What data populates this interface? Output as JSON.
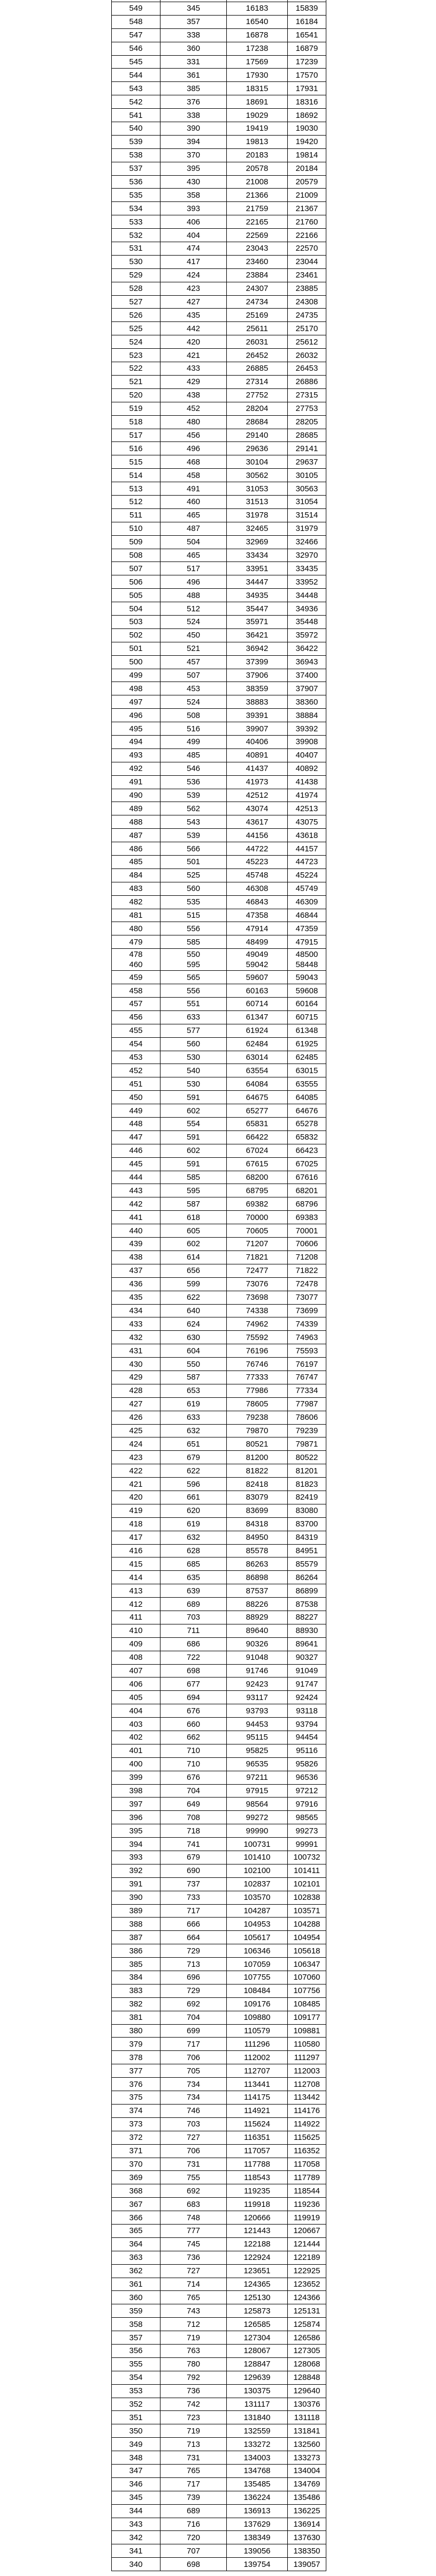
{
  "rows_before": [
    [
      549,
      345,
      16183,
      15839
    ],
    [
      548,
      357,
      16540,
      16184
    ],
    [
      547,
      338,
      16878,
      16541
    ],
    [
      546,
      360,
      17238,
      16879
    ],
    [
      545,
      331,
      17569,
      17239
    ],
    [
      544,
      361,
      17930,
      17570
    ],
    [
      543,
      385,
      18315,
      17931
    ],
    [
      542,
      376,
      18691,
      18316
    ],
    [
      541,
      338,
      19029,
      18692
    ],
    [
      540,
      390,
      19419,
      19030
    ],
    [
      539,
      394,
      19813,
      19420
    ],
    [
      538,
      370,
      20183,
      19814
    ],
    [
      537,
      395,
      20578,
      20184
    ],
    [
      536,
      430,
      21008,
      20579
    ],
    [
      535,
      358,
      21366,
      21009
    ],
    [
      534,
      393,
      21759,
      21367
    ],
    [
      533,
      406,
      22165,
      21760
    ],
    [
      532,
      404,
      22569,
      22166
    ],
    [
      531,
      474,
      23043,
      22570
    ],
    [
      530,
      417,
      23460,
      23044
    ],
    [
      529,
      424,
      23884,
      23461
    ],
    [
      528,
      423,
      24307,
      23885
    ],
    [
      527,
      427,
      24734,
      24308
    ],
    [
      526,
      435,
      25169,
      24735
    ],
    [
      525,
      442,
      25611,
      25170
    ],
    [
      524,
      420,
      26031,
      25612
    ],
    [
      523,
      421,
      26452,
      26032
    ],
    [
      522,
      433,
      26885,
      26453
    ],
    [
      521,
      429,
      27314,
      26886
    ],
    [
      520,
      438,
      27752,
      27315
    ],
    [
      519,
      452,
      28204,
      27753
    ],
    [
      518,
      480,
      28684,
      28205
    ],
    [
      517,
      456,
      29140,
      28685
    ],
    [
      516,
      496,
      29636,
      29141
    ],
    [
      515,
      468,
      30104,
      29637
    ],
    [
      514,
      458,
      30562,
      30105
    ],
    [
      513,
      491,
      31053,
      30563
    ],
    [
      512,
      460,
      31513,
      31054
    ],
    [
      511,
      465,
      31978,
      31514
    ],
    [
      510,
      487,
      32465,
      31979
    ],
    [
      509,
      504,
      32969,
      32466
    ],
    [
      508,
      465,
      33434,
      32970
    ],
    [
      507,
      517,
      33951,
      33435
    ],
    [
      506,
      496,
      34447,
      33952
    ],
    [
      505,
      488,
      34935,
      34448
    ],
    [
      504,
      512,
      35447,
      34936
    ],
    [
      503,
      524,
      35971,
      35448
    ],
    [
      502,
      450,
      36421,
      35972
    ],
    [
      501,
      521,
      36942,
      36422
    ],
    [
      500,
      457,
      37399,
      36943
    ],
    [
      499,
      507,
      37906,
      37400
    ],
    [
      498,
      453,
      38359,
      37907
    ],
    [
      497,
      524,
      38883,
      38360
    ],
    [
      496,
      508,
      39391,
      38884
    ],
    [
      495,
      516,
      39907,
      39392
    ],
    [
      494,
      499,
      40406,
      39908
    ],
    [
      493,
      485,
      40891,
      40407
    ],
    [
      492,
      546,
      41437,
      40892
    ],
    [
      491,
      536,
      41973,
      41438
    ],
    [
      490,
      539,
      42512,
      41974
    ],
    [
      489,
      562,
      43074,
      42513
    ],
    [
      488,
      543,
      43617,
      43075
    ],
    [
      487,
      539,
      44156,
      43618
    ],
    [
      486,
      566,
      44722,
      44157
    ],
    [
      485,
      501,
      45223,
      44723
    ],
    [
      484,
      525,
      45748,
      45224
    ],
    [
      483,
      560,
      46308,
      45749
    ],
    [
      482,
      535,
      46843,
      46309
    ],
    [
      481,
      515,
      47358,
      46844
    ],
    [
      480,
      556,
      47914,
      47359
    ],
    [
      479,
      585,
      48499,
      47915
    ]
  ],
  "overlap_row": {
    "top": [
      478,
      550,
      49049,
      48500
    ],
    "bottom": [
      460,
      595,
      59042,
      58448
    ]
  },
  "rows_after": [
    [
      459,
      565,
      59607,
      59043
    ],
    [
      458,
      556,
      60163,
      59608
    ],
    [
      457,
      551,
      60714,
      60164
    ],
    [
      456,
      633,
      61347,
      60715
    ],
    [
      455,
      577,
      61924,
      61348
    ],
    [
      454,
      560,
      62484,
      61925
    ],
    [
      453,
      530,
      63014,
      62485
    ],
    [
      452,
      540,
      63554,
      63015
    ],
    [
      451,
      530,
      64084,
      63555
    ],
    [
      450,
      591,
      64675,
      64085
    ],
    [
      449,
      602,
      65277,
      64676
    ],
    [
      448,
      554,
      65831,
      65278
    ],
    [
      447,
      591,
      66422,
      65832
    ],
    [
      446,
      602,
      67024,
      66423
    ],
    [
      445,
      591,
      67615,
      67025
    ],
    [
      444,
      585,
      68200,
      67616
    ],
    [
      443,
      595,
      68795,
      68201
    ],
    [
      442,
      587,
      69382,
      68796
    ],
    [
      441,
      618,
      70000,
      69383
    ],
    [
      440,
      605,
      70605,
      70001
    ],
    [
      439,
      602,
      71207,
      70606
    ],
    [
      438,
      614,
      71821,
      71208
    ],
    [
      437,
      656,
      72477,
      71822
    ],
    [
      436,
      599,
      73076,
      72478
    ],
    [
      435,
      622,
      73698,
      73077
    ],
    [
      434,
      640,
      74338,
      73699
    ],
    [
      433,
      624,
      74962,
      74339
    ],
    [
      432,
      630,
      75592,
      74963
    ],
    [
      431,
      604,
      76196,
      75593
    ],
    [
      430,
      550,
      76746,
      76197
    ],
    [
      429,
      587,
      77333,
      76747
    ],
    [
      428,
      653,
      77986,
      77334
    ],
    [
      427,
      619,
      78605,
      77987
    ],
    [
      426,
      633,
      79238,
      78606
    ],
    [
      425,
      632,
      79870,
      79239
    ],
    [
      424,
      651,
      80521,
      79871
    ],
    [
      423,
      679,
      81200,
      80522
    ],
    [
      422,
      622,
      81822,
      81201
    ],
    [
      421,
      596,
      82418,
      81823
    ],
    [
      420,
      661,
      83079,
      82419
    ],
    [
      419,
      620,
      83699,
      83080
    ],
    [
      418,
      619,
      84318,
      83700
    ],
    [
      417,
      632,
      84950,
      84319
    ],
    [
      416,
      628,
      85578,
      84951
    ],
    [
      415,
      685,
      86263,
      85579
    ],
    [
      414,
      635,
      86898,
      86264
    ],
    [
      413,
      639,
      87537,
      86899
    ],
    [
      412,
      689,
      88226,
      87538
    ],
    [
      411,
      703,
      88929,
      88227
    ],
    [
      410,
      711,
      89640,
      88930
    ],
    [
      409,
      686,
      90326,
      89641
    ],
    [
      408,
      722,
      91048,
      90327
    ],
    [
      407,
      698,
      91746,
      91049
    ],
    [
      406,
      677,
      92423,
      91747
    ],
    [
      405,
      694,
      93117,
      92424
    ],
    [
      404,
      676,
      93793,
      93118
    ],
    [
      403,
      660,
      94453,
      93794
    ],
    [
      402,
      662,
      95115,
      94454
    ],
    [
      401,
      710,
      95825,
      95116
    ],
    [
      400,
      710,
      96535,
      95826
    ],
    [
      399,
      676,
      97211,
      96536
    ],
    [
      398,
      704,
      97915,
      97212
    ],
    [
      397,
      649,
      98564,
      97916
    ],
    [
      396,
      708,
      99272,
      98565
    ],
    [
      395,
      718,
      99990,
      99273
    ],
    [
      394,
      741,
      100731,
      99991
    ],
    [
      393,
      679,
      101410,
      100732
    ],
    [
      392,
      690,
      102100,
      101411
    ],
    [
      391,
      737,
      102837,
      102101
    ],
    [
      390,
      733,
      103570,
      102838
    ],
    [
      389,
      717,
      104287,
      103571
    ],
    [
      388,
      666,
      104953,
      104288
    ],
    [
      387,
      664,
      105617,
      104954
    ],
    [
      386,
      729,
      106346,
      105618
    ],
    [
      385,
      713,
      107059,
      106347
    ],
    [
      384,
      696,
      107755,
      107060
    ],
    [
      383,
      729,
      108484,
      107756
    ],
    [
      382,
      692,
      109176,
      108485
    ],
    [
      381,
      704,
      109880,
      109177
    ],
    [
      380,
      699,
      110579,
      109881
    ],
    [
      379,
      717,
      111296,
      110580
    ],
    [
      378,
      706,
      112002,
      111297
    ],
    [
      377,
      705,
      112707,
      112003
    ],
    [
      376,
      734,
      113441,
      112708
    ],
    [
      375,
      734,
      114175,
      113442
    ],
    [
      374,
      746,
      114921,
      114176
    ],
    [
      373,
      703,
      115624,
      114922
    ],
    [
      372,
      727,
      116351,
      115625
    ],
    [
      371,
      706,
      117057,
      116352
    ],
    [
      370,
      731,
      117788,
      117058
    ],
    [
      369,
      755,
      118543,
      117789
    ],
    [
      368,
      692,
      119235,
      118544
    ],
    [
      367,
      683,
      119918,
      119236
    ],
    [
      366,
      748,
      120666,
      119919
    ],
    [
      365,
      777,
      121443,
      120667
    ],
    [
      364,
      745,
      122188,
      121444
    ],
    [
      363,
      736,
      122924,
      122189
    ],
    [
      362,
      727,
      123651,
      122925
    ],
    [
      361,
      714,
      124365,
      123652
    ],
    [
      360,
      765,
      125130,
      124366
    ],
    [
      359,
      743,
      125873,
      125131
    ],
    [
      358,
      712,
      126585,
      125874
    ],
    [
      357,
      719,
      127304,
      126586
    ],
    [
      356,
      763,
      128067,
      127305
    ],
    [
      355,
      780,
      128847,
      128068
    ],
    [
      354,
      792,
      129639,
      128848
    ],
    [
      353,
      736,
      130375,
      129640
    ],
    [
      352,
      742,
      131117,
      130376
    ],
    [
      351,
      723,
      131840,
      131118
    ],
    [
      350,
      719,
      132559,
      131841
    ],
    [
      349,
      713,
      133272,
      132560
    ],
    [
      348,
      731,
      134003,
      133273
    ],
    [
      347,
      765,
      134768,
      134004
    ],
    [
      346,
      717,
      135485,
      134769
    ],
    [
      345,
      739,
      136224,
      135486
    ],
    [
      344,
      689,
      136913,
      136225
    ],
    [
      343,
      716,
      137629,
      136914
    ],
    [
      342,
      720,
      138349,
      137630
    ],
    [
      341,
      707,
      139056,
      138350
    ],
    [
      340,
      698,
      139754,
      139057
    ]
  ]
}
